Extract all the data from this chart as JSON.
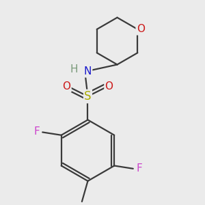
{
  "background_color": "#ebebeb",
  "bond_color": "#3a3a3a",
  "bond_width": 1.6,
  "atom_colors": {
    "C": "#3a3a3a",
    "H": "#7a9a7a",
    "N": "#1a1acc",
    "O": "#cc1a1a",
    "S": "#aaaa00",
    "F": "#cc44cc"
  },
  "font_size": 11,
  "figsize": [
    3.0,
    3.0
  ],
  "dpi": 100
}
